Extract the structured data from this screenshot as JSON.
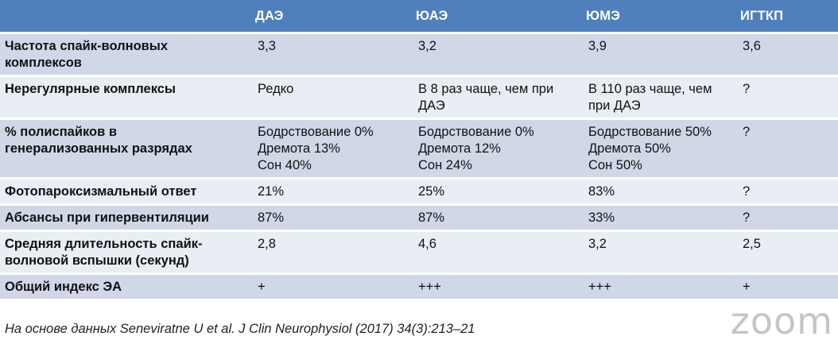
{
  "table": {
    "header": [
      "",
      "ДАЭ",
      "ЮАЭ",
      "ЮМЭ",
      "ИГТКП"
    ],
    "rows": [
      {
        "label": "Частота спайк-волновых\nкомплексов",
        "cells": [
          "3,3",
          "3,2",
          "3,9",
          "3,6"
        ]
      },
      {
        "label": "Нерегулярные комплексы",
        "cells": [
          "Редко",
          "В 8 раз чаще, чем при\nДАЭ",
          "В 110 раз чаще, чем\nпри ДАЭ",
          "?"
        ]
      },
      {
        "label": "% полиспайков в\nгенерализованных разрядах",
        "cells": [
          "Бодрствование 0%\nДремота 13%\nСон 40%",
          "Бодрствование 0%\nДремота 12%\nСон 24%",
          "Бодрствование 50%\nДремота 50%\nСон 50%",
          "?"
        ]
      },
      {
        "label": "Фотопароксизмальный ответ",
        "cells": [
          "21%",
          "25%",
          "83%",
          "?"
        ]
      },
      {
        "label": "Абсансы при гипервентиляции",
        "cells": [
          "87%",
          "87%",
          "33%",
          "?"
        ]
      },
      {
        "label": "Средняя длительность спайк-\nволновой вспышки (секунд)",
        "cells": [
          "2,8",
          "4,6",
          "3,2",
          "2,5"
        ]
      },
      {
        "label": "Общий индекс ЭА",
        "cells": [
          "+",
          "+++",
          "+++",
          "+"
        ]
      }
    ]
  },
  "source": "На основе данных Seneviratne U et al. J Clin Neurophysiol (2017) 34(3):213–21",
  "watermark": "zoom",
  "colors": {
    "header": "#4f80bd",
    "row_dark": "#d0d8e8",
    "row_light": "#e9edf4"
  }
}
